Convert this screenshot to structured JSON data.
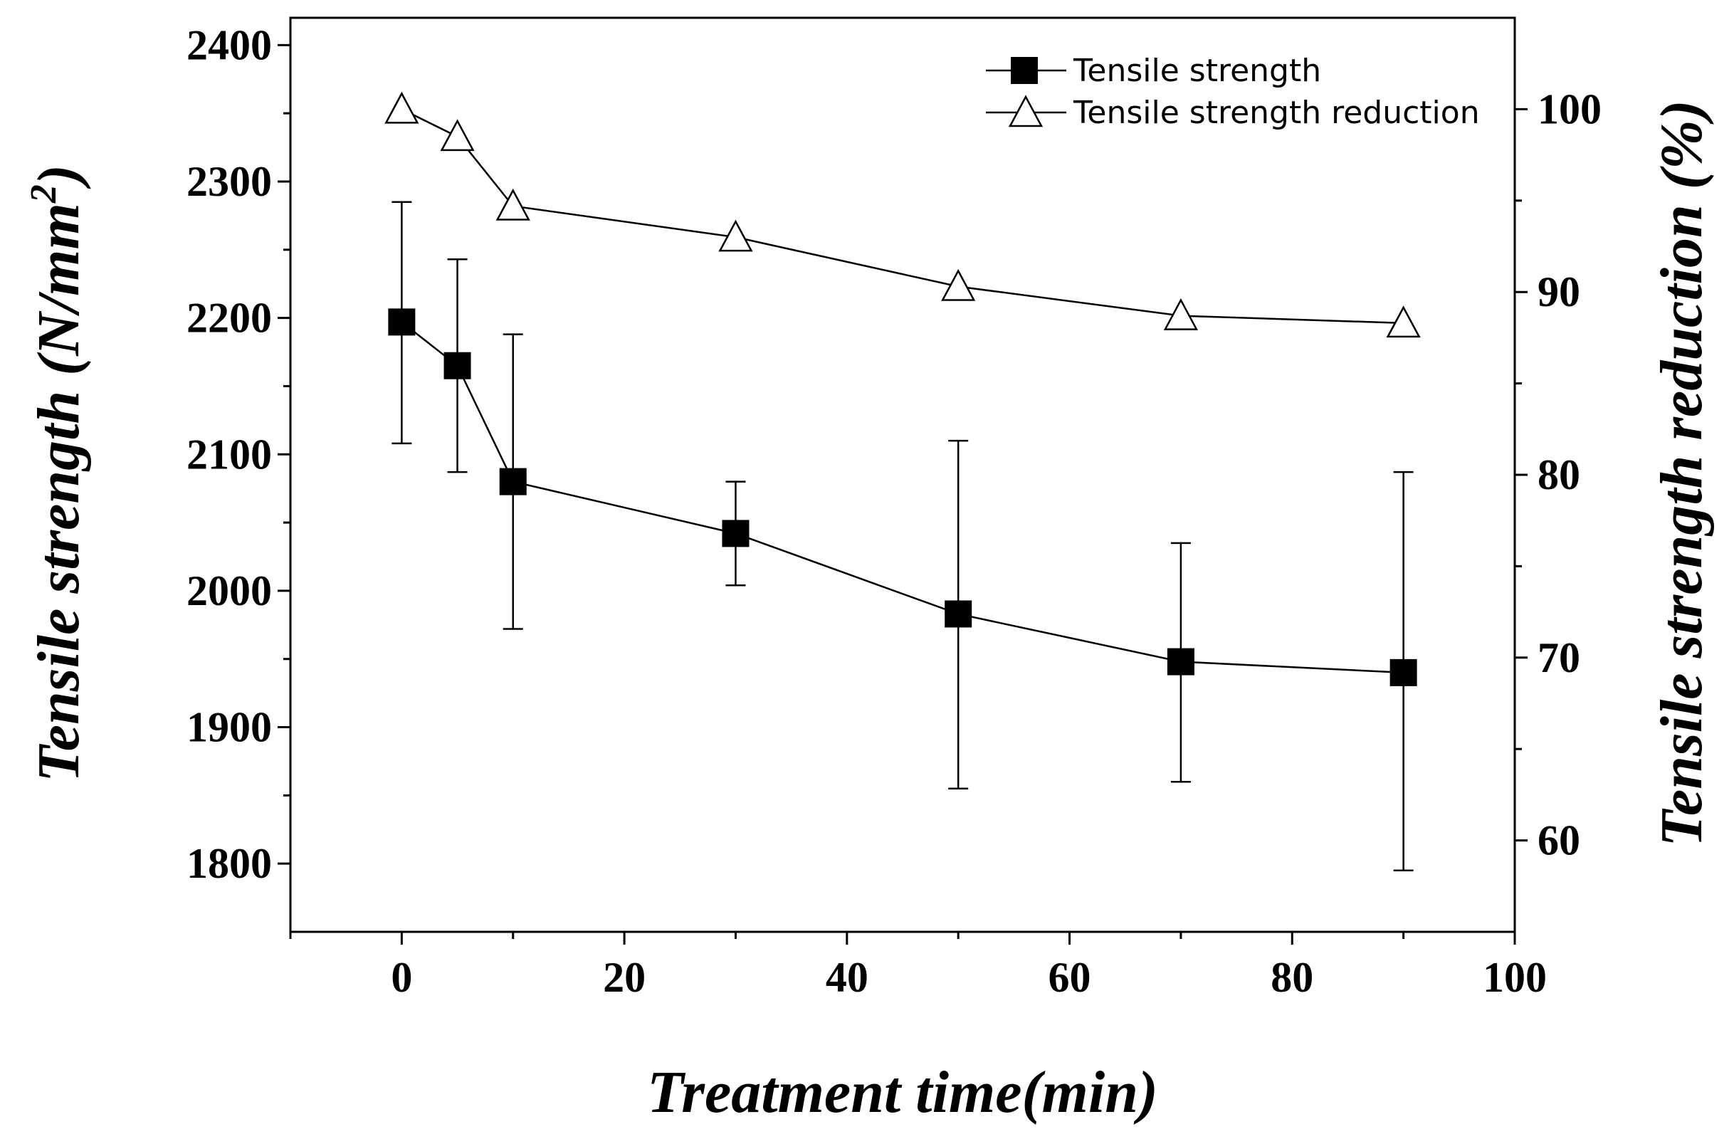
{
  "chart_data": {
    "type": "line",
    "xlabel": "Treatment time(min)",
    "ylabel_left": "Tensile strength (N/mm",
    "ylabel_left_sup": "2",
    "ylabel_left_close": ")",
    "ylabel_right": "Tensile strength reduction (%)",
    "xlim": [
      -10,
      100
    ],
    "ylim_left": [
      1750,
      2420
    ],
    "ylim_right": [
      55,
      105
    ],
    "x_ticks": [
      0,
      20,
      40,
      60,
      80,
      100
    ],
    "y_left_ticks": [
      1800,
      1900,
      2000,
      2100,
      2200,
      2300,
      2400
    ],
    "y_right_ticks": [
      60,
      70,
      80,
      90,
      100
    ],
    "legend_position": "top-right",
    "series": [
      {
        "name": "Tensile strength",
        "axis": "left",
        "marker": "filled-square",
        "x": [
          0,
          5,
          10,
          30,
          50,
          70,
          90
        ],
        "y": [
          2197,
          2165,
          2080,
          2042,
          1983,
          1948,
          1940
        ],
        "err_low": [
          2108,
          2087,
          1972,
          2004,
          1855,
          1860,
          1795
        ],
        "err_high": [
          2285,
          2243,
          2188,
          2080,
          2110,
          2035,
          2087
        ]
      },
      {
        "name": "Tensile strength reduction",
        "axis": "right",
        "marker": "open-triangle",
        "x": [
          0,
          5,
          10,
          30,
          50,
          70,
          90
        ],
        "y": [
          100,
          98.5,
          94.7,
          93.0,
          90.3,
          88.7,
          88.3
        ]
      }
    ]
  }
}
